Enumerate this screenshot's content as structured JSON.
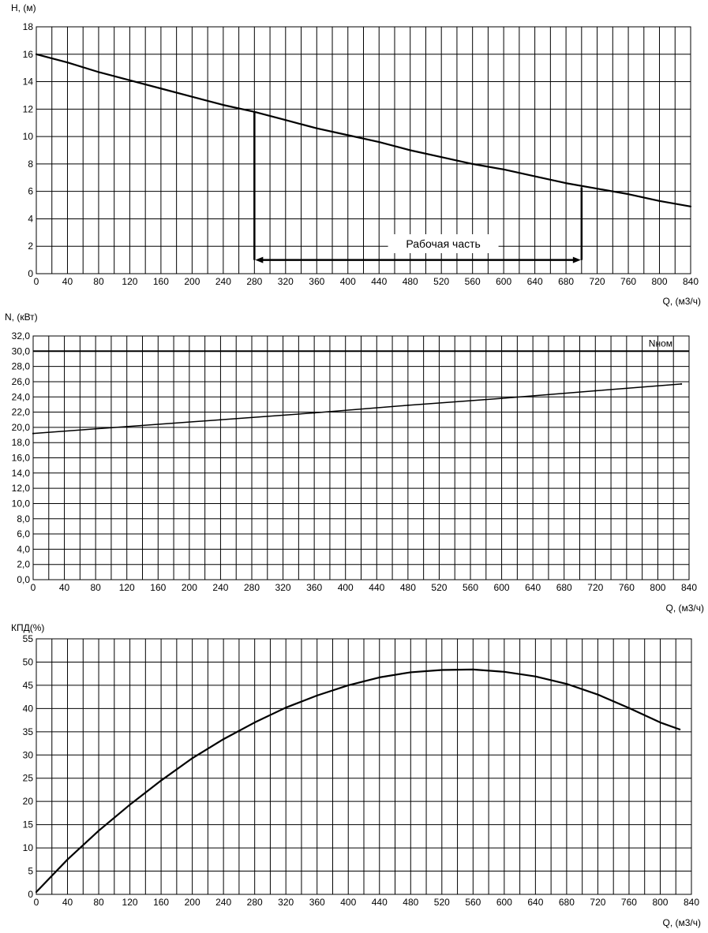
{
  "chart_data": [
    {
      "type": "line",
      "ylabel": "H, (м)",
      "xlabel": "Q, (м3/ч)",
      "xlim": [
        0,
        840
      ],
      "ylim": [
        0,
        18
      ],
      "x_ticks": [
        "0",
        "40",
        "80",
        "120",
        "160",
        "200",
        "240",
        "280",
        "320",
        "360",
        "400",
        "440",
        "480",
        "520",
        "560",
        "600",
        "640",
        "680",
        "720",
        "760",
        "800",
        "840"
      ],
      "y_ticks": [
        "0",
        "2",
        "4",
        "6",
        "8",
        "10",
        "12",
        "14",
        "16",
        "18"
      ],
      "grid": true,
      "series": [
        {
          "x": [
            0,
            40,
            80,
            120,
            160,
            200,
            240,
            280,
            320,
            360,
            400,
            440,
            480,
            520,
            560,
            600,
            640,
            680,
            720,
            760,
            800,
            840
          ],
          "values": [
            16.0,
            15.4,
            14.7,
            14.1,
            13.5,
            12.9,
            12.3,
            11.8,
            11.2,
            10.6,
            10.1,
            9.6,
            9.0,
            8.5,
            8.0,
            7.6,
            7.1,
            6.6,
            6.2,
            5.8,
            5.3,
            4.9
          ]
        }
      ],
      "working_range": {
        "label": "Рабочая часть",
        "from": 280,
        "to": 700,
        "h_from": 11.8,
        "h_to": 6.3,
        "y": 1.0
      }
    },
    {
      "type": "line",
      "ylabel": "N, (кВт)",
      "xlabel": "Q, (м3/ч)",
      "xlim": [
        0,
        840
      ],
      "ylim": [
        0,
        32
      ],
      "x_ticks": [
        "0",
        "40",
        "80",
        "120",
        "160",
        "200",
        "240",
        "280",
        "320",
        "360",
        "400",
        "440",
        "480",
        "520",
        "560",
        "600",
        "640",
        "680",
        "720",
        "760",
        "800",
        "840"
      ],
      "y_ticks": [
        "0,0",
        "2,0",
        "4,0",
        "6,0",
        "8,0",
        "10,0",
        "12,0",
        "14,0",
        "16,0",
        "18,0",
        "20,0",
        "22,0",
        "24,0",
        "26,0",
        "28,0",
        "30,0",
        "32,0"
      ],
      "grid": true,
      "series": [
        {
          "x": [
            0,
            120,
            240,
            360,
            480,
            600,
            720,
            830
          ],
          "values": [
            19.2,
            20.1,
            21.0,
            21.9,
            22.9,
            23.8,
            24.8,
            25.7
          ]
        }
      ],
      "reference_line": {
        "label": "Nном",
        "y": 30.0
      }
    },
    {
      "type": "line",
      "ylabel": "КПД(%)",
      "xlabel": "Q, (м3/ч)",
      "xlim": [
        0,
        840
      ],
      "ylim": [
        0,
        55
      ],
      "x_ticks": [
        "0",
        "40",
        "80",
        "120",
        "160",
        "200",
        "240",
        "280",
        "320",
        "360",
        "400",
        "440",
        "480",
        "520",
        "560",
        "600",
        "640",
        "680",
        "720",
        "760",
        "800",
        "840"
      ],
      "y_ticks": [
        "0",
        "5",
        "10",
        "15",
        "20",
        "25",
        "30",
        "35",
        "40",
        "45",
        "50",
        "55"
      ],
      "grid": true,
      "series": [
        {
          "x": [
            0,
            40,
            80,
            120,
            160,
            200,
            240,
            280,
            320,
            360,
            400,
            440,
            480,
            520,
            560,
            600,
            640,
            680,
            720,
            760,
            800,
            825
          ],
          "values": [
            0.5,
            7.5,
            13.7,
            19.3,
            24.5,
            29.3,
            33.4,
            37.0,
            40.2,
            42.8,
            45.0,
            46.7,
            47.8,
            48.3,
            48.4,
            47.9,
            46.9,
            45.3,
            43.0,
            40.1,
            37.0,
            35.5
          ]
        }
      ]
    }
  ]
}
